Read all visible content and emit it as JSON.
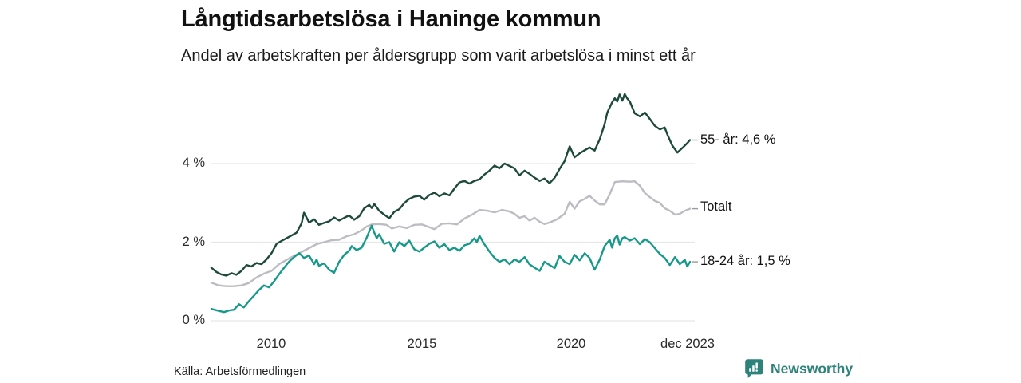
{
  "header": {
    "title": "Långtidsarbetslösa i Haninge kommun",
    "subtitle": "Andel av arbetskraften per åldersgrupp som varit arbetslösa i minst ett år"
  },
  "footer": {
    "source": "Källa: Arbetsförmedlingen",
    "brand": "Newsworthy"
  },
  "colors": {
    "series_55": "#1d4a3b",
    "series_total": "#bcbcc2",
    "series_1824": "#17998a",
    "gridline": "#e7e7ea",
    "end_tick": "#9a9aa0",
    "brand_teal": "#2d837b",
    "text": "#111111"
  },
  "chart_data": {
    "type": "line",
    "title": "Långtidsarbetslösa i Haninge kommun",
    "subtitle": "Andel av arbetskraften per åldersgrupp som varit arbetslösa i minst ett år",
    "xlabel": "",
    "ylabel": "",
    "xlim": [
      2008.0,
      2023.92
    ],
    "ylim": [
      0,
      5.93
    ],
    "grid": "horizontal",
    "legend_position": "right-of-line-ends",
    "y_ticks": [
      {
        "value": 0,
        "label": "0 %"
      },
      {
        "value": 2,
        "label": "2 %"
      },
      {
        "value": 4,
        "label": "4 %"
      }
    ],
    "x_ticks": [
      {
        "value": 2010,
        "label": "2010"
      },
      {
        "value": 2015,
        "label": "2015"
      },
      {
        "value": 2020,
        "label": "2020"
      },
      {
        "value": 2023.92,
        "label": "dec 2023"
      }
    ],
    "series": [
      {
        "name": "Totalt",
        "end_label": "Totalt",
        "end_value": 2.85,
        "color": "#bcbcc2",
        "points": [
          [
            2008.0,
            0.97
          ],
          [
            2008.25,
            0.9
          ],
          [
            2008.5,
            0.88
          ],
          [
            2008.75,
            0.88
          ],
          [
            2009.0,
            0.9
          ],
          [
            2009.25,
            0.96
          ],
          [
            2009.5,
            1.1
          ],
          [
            2009.75,
            1.2
          ],
          [
            2010.0,
            1.27
          ],
          [
            2010.25,
            1.44
          ],
          [
            2010.5,
            1.55
          ],
          [
            2010.75,
            1.65
          ],
          [
            2011.0,
            1.75
          ],
          [
            2011.25,
            1.85
          ],
          [
            2011.5,
            1.95
          ],
          [
            2011.75,
            2.0
          ],
          [
            2012.0,
            2.05
          ],
          [
            2012.25,
            2.06
          ],
          [
            2012.5,
            2.15
          ],
          [
            2012.75,
            2.2
          ],
          [
            2013.0,
            2.3
          ],
          [
            2013.17,
            2.4
          ],
          [
            2013.33,
            2.45
          ],
          [
            2013.58,
            2.46
          ],
          [
            2013.83,
            2.44
          ],
          [
            2014.0,
            2.35
          ],
          [
            2014.25,
            2.4
          ],
          [
            2014.5,
            2.36
          ],
          [
            2014.75,
            2.44
          ],
          [
            2015.0,
            2.45
          ],
          [
            2015.25,
            2.38
          ],
          [
            2015.42,
            2.33
          ],
          [
            2015.67,
            2.47
          ],
          [
            2015.92,
            2.48
          ],
          [
            2016.17,
            2.45
          ],
          [
            2016.42,
            2.6
          ],
          [
            2016.67,
            2.7
          ],
          [
            2016.92,
            2.82
          ],
          [
            2017.17,
            2.8
          ],
          [
            2017.42,
            2.76
          ],
          [
            2017.67,
            2.82
          ],
          [
            2017.92,
            2.78
          ],
          [
            2018.08,
            2.72
          ],
          [
            2018.25,
            2.62
          ],
          [
            2018.42,
            2.66
          ],
          [
            2018.58,
            2.55
          ],
          [
            2018.75,
            2.62
          ],
          [
            2018.92,
            2.52
          ],
          [
            2019.08,
            2.46
          ],
          [
            2019.25,
            2.5
          ],
          [
            2019.5,
            2.58
          ],
          [
            2019.75,
            2.72
          ],
          [
            2019.92,
            3.03
          ],
          [
            2020.08,
            2.85
          ],
          [
            2020.25,
            3.04
          ],
          [
            2020.42,
            3.1
          ],
          [
            2020.58,
            3.18
          ],
          [
            2020.75,
            3.06
          ],
          [
            2020.92,
            2.96
          ],
          [
            2021.08,
            2.96
          ],
          [
            2021.25,
            3.22
          ],
          [
            2021.42,
            3.53
          ],
          [
            2021.67,
            3.55
          ],
          [
            2021.92,
            3.54
          ],
          [
            2022.08,
            3.55
          ],
          [
            2022.25,
            3.44
          ],
          [
            2022.42,
            3.25
          ],
          [
            2022.58,
            3.15
          ],
          [
            2022.75,
            3.05
          ],
          [
            2022.92,
            3.0
          ],
          [
            2023.08,
            2.86
          ],
          [
            2023.25,
            2.8
          ],
          [
            2023.42,
            2.7
          ],
          [
            2023.58,
            2.72
          ],
          [
            2023.75,
            2.8
          ],
          [
            2023.92,
            2.85
          ]
        ]
      },
      {
        "name": "55- år",
        "end_label": "55- år: 4,6 %",
        "end_value": 4.6,
        "color": "#1d4a3b",
        "points": [
          [
            2008.0,
            1.35
          ],
          [
            2008.17,
            1.24
          ],
          [
            2008.33,
            1.18
          ],
          [
            2008.5,
            1.15
          ],
          [
            2008.67,
            1.21
          ],
          [
            2008.83,
            1.17
          ],
          [
            2009.0,
            1.27
          ],
          [
            2009.17,
            1.42
          ],
          [
            2009.33,
            1.38
          ],
          [
            2009.5,
            1.47
          ],
          [
            2009.67,
            1.44
          ],
          [
            2009.83,
            1.56
          ],
          [
            2010.0,
            1.72
          ],
          [
            2010.17,
            1.96
          ],
          [
            2010.33,
            2.03
          ],
          [
            2010.5,
            2.1
          ],
          [
            2010.67,
            2.17
          ],
          [
            2010.83,
            2.24
          ],
          [
            2011.0,
            2.48
          ],
          [
            2011.08,
            2.75
          ],
          [
            2011.17,
            2.62
          ],
          [
            2011.25,
            2.5
          ],
          [
            2011.42,
            2.58
          ],
          [
            2011.58,
            2.44
          ],
          [
            2011.75,
            2.49
          ],
          [
            2011.92,
            2.53
          ],
          [
            2012.08,
            2.63
          ],
          [
            2012.25,
            2.55
          ],
          [
            2012.42,
            2.62
          ],
          [
            2012.58,
            2.68
          ],
          [
            2012.75,
            2.57
          ],
          [
            2012.92,
            2.66
          ],
          [
            2013.08,
            2.86
          ],
          [
            2013.25,
            2.95
          ],
          [
            2013.33,
            2.87
          ],
          [
            2013.42,
            2.97
          ],
          [
            2013.58,
            2.8
          ],
          [
            2013.75,
            2.7
          ],
          [
            2013.92,
            2.61
          ],
          [
            2014.08,
            2.77
          ],
          [
            2014.25,
            2.84
          ],
          [
            2014.42,
            3.0
          ],
          [
            2014.58,
            3.1
          ],
          [
            2014.75,
            3.16
          ],
          [
            2014.92,
            3.18
          ],
          [
            2015.08,
            3.08
          ],
          [
            2015.25,
            3.2
          ],
          [
            2015.42,
            3.26
          ],
          [
            2015.58,
            3.17
          ],
          [
            2015.75,
            3.24
          ],
          [
            2015.92,
            3.19
          ],
          [
            2016.08,
            3.36
          ],
          [
            2016.25,
            3.52
          ],
          [
            2016.42,
            3.56
          ],
          [
            2016.58,
            3.49
          ],
          [
            2016.75,
            3.56
          ],
          [
            2016.92,
            3.6
          ],
          [
            2017.08,
            3.72
          ],
          [
            2017.25,
            3.82
          ],
          [
            2017.42,
            3.95
          ],
          [
            2017.58,
            3.88
          ],
          [
            2017.75,
            4.0
          ],
          [
            2017.92,
            3.94
          ],
          [
            2018.08,
            3.88
          ],
          [
            2018.25,
            3.7
          ],
          [
            2018.42,
            3.82
          ],
          [
            2018.58,
            3.74
          ],
          [
            2018.75,
            3.64
          ],
          [
            2018.92,
            3.56
          ],
          [
            2019.08,
            3.62
          ],
          [
            2019.25,
            3.5
          ],
          [
            2019.42,
            3.64
          ],
          [
            2019.58,
            3.86
          ],
          [
            2019.75,
            4.06
          ],
          [
            2019.92,
            4.44
          ],
          [
            2020.08,
            4.16
          ],
          [
            2020.25,
            4.26
          ],
          [
            2020.42,
            4.34
          ],
          [
            2020.58,
            4.41
          ],
          [
            2020.75,
            4.33
          ],
          [
            2020.92,
            4.62
          ],
          [
            2021.08,
            5.0
          ],
          [
            2021.17,
            5.3
          ],
          [
            2021.33,
            5.56
          ],
          [
            2021.42,
            5.66
          ],
          [
            2021.5,
            5.58
          ],
          [
            2021.58,
            5.76
          ],
          [
            2021.67,
            5.6
          ],
          [
            2021.75,
            5.77
          ],
          [
            2021.83,
            5.66
          ],
          [
            2021.92,
            5.58
          ],
          [
            2022.08,
            5.28
          ],
          [
            2022.25,
            5.2
          ],
          [
            2022.42,
            5.3
          ],
          [
            2022.58,
            5.14
          ],
          [
            2022.75,
            4.96
          ],
          [
            2022.92,
            4.87
          ],
          [
            2023.08,
            4.92
          ],
          [
            2023.17,
            4.74
          ],
          [
            2023.33,
            4.46
          ],
          [
            2023.5,
            4.28
          ],
          [
            2023.67,
            4.4
          ],
          [
            2023.83,
            4.52
          ],
          [
            2023.92,
            4.6
          ]
        ]
      },
      {
        "name": "18-24 år",
        "end_label": "18-24 år: 1,5 %",
        "end_value": 1.5,
        "color": "#17998a",
        "points": [
          [
            2008.0,
            0.3
          ],
          [
            2008.25,
            0.25
          ],
          [
            2008.42,
            0.22
          ],
          [
            2008.58,
            0.26
          ],
          [
            2008.75,
            0.28
          ],
          [
            2008.92,
            0.42
          ],
          [
            2009.08,
            0.34
          ],
          [
            2009.25,
            0.5
          ],
          [
            2009.42,
            0.64
          ],
          [
            2009.58,
            0.78
          ],
          [
            2009.75,
            0.9
          ],
          [
            2009.92,
            0.85
          ],
          [
            2010.08,
            1.0
          ],
          [
            2010.25,
            1.18
          ],
          [
            2010.42,
            1.35
          ],
          [
            2010.58,
            1.5
          ],
          [
            2010.75,
            1.62
          ],
          [
            2010.92,
            1.72
          ],
          [
            2011.08,
            1.6
          ],
          [
            2011.25,
            1.66
          ],
          [
            2011.42,
            1.44
          ],
          [
            2011.5,
            1.56
          ],
          [
            2011.58,
            1.4
          ],
          [
            2011.75,
            1.46
          ],
          [
            2011.92,
            1.3
          ],
          [
            2012.08,
            1.22
          ],
          [
            2012.25,
            1.5
          ],
          [
            2012.42,
            1.68
          ],
          [
            2012.58,
            1.78
          ],
          [
            2012.67,
            1.9
          ],
          [
            2012.83,
            1.8
          ],
          [
            2013.0,
            1.86
          ],
          [
            2013.17,
            2.12
          ],
          [
            2013.33,
            2.42
          ],
          [
            2013.42,
            2.24
          ],
          [
            2013.5,
            2.1
          ],
          [
            2013.58,
            2.2
          ],
          [
            2013.75,
            1.96
          ],
          [
            2013.92,
            2.0
          ],
          [
            2014.08,
            1.76
          ],
          [
            2014.25,
            2.0
          ],
          [
            2014.42,
            1.9
          ],
          [
            2014.58,
            2.04
          ],
          [
            2014.75,
            1.82
          ],
          [
            2014.92,
            1.76
          ],
          [
            2015.08,
            1.86
          ],
          [
            2015.25,
            1.96
          ],
          [
            2015.42,
            2.02
          ],
          [
            2015.58,
            1.86
          ],
          [
            2015.75,
            1.95
          ],
          [
            2015.92,
            1.8
          ],
          [
            2016.08,
            1.86
          ],
          [
            2016.25,
            1.78
          ],
          [
            2016.42,
            1.92
          ],
          [
            2016.58,
            1.96
          ],
          [
            2016.75,
            2.1
          ],
          [
            2016.83,
            2.0
          ],
          [
            2016.92,
            2.16
          ],
          [
            2017.08,
            1.95
          ],
          [
            2017.25,
            1.76
          ],
          [
            2017.42,
            1.6
          ],
          [
            2017.58,
            1.5
          ],
          [
            2017.75,
            1.56
          ],
          [
            2017.92,
            1.44
          ],
          [
            2018.08,
            1.56
          ],
          [
            2018.25,
            1.5
          ],
          [
            2018.42,
            1.62
          ],
          [
            2018.58,
            1.44
          ],
          [
            2018.75,
            1.35
          ],
          [
            2018.92,
            1.27
          ],
          [
            2019.08,
            1.5
          ],
          [
            2019.25,
            1.42
          ],
          [
            2019.42,
            1.34
          ],
          [
            2019.58,
            1.65
          ],
          [
            2019.75,
            1.5
          ],
          [
            2019.92,
            1.44
          ],
          [
            2020.08,
            1.68
          ],
          [
            2020.25,
            1.54
          ],
          [
            2020.42,
            1.72
          ],
          [
            2020.58,
            1.6
          ],
          [
            2020.75,
            1.3
          ],
          [
            2020.92,
            1.56
          ],
          [
            2021.08,
            1.9
          ],
          [
            2021.25,
            2.06
          ],
          [
            2021.33,
            1.86
          ],
          [
            2021.42,
            2.1
          ],
          [
            2021.5,
            2.17
          ],
          [
            2021.58,
            1.94
          ],
          [
            2021.67,
            2.1
          ],
          [
            2021.75,
            2.13
          ],
          [
            2021.92,
            2.04
          ],
          [
            2022.08,
            2.1
          ],
          [
            2022.25,
            1.95
          ],
          [
            2022.42,
            2.08
          ],
          [
            2022.58,
            2.0
          ],
          [
            2022.75,
            1.85
          ],
          [
            2022.92,
            1.7
          ],
          [
            2023.08,
            1.6
          ],
          [
            2023.25,
            1.42
          ],
          [
            2023.42,
            1.62
          ],
          [
            2023.58,
            1.44
          ],
          [
            2023.75,
            1.55
          ],
          [
            2023.83,
            1.38
          ],
          [
            2023.92,
            1.5
          ]
        ]
      }
    ]
  }
}
